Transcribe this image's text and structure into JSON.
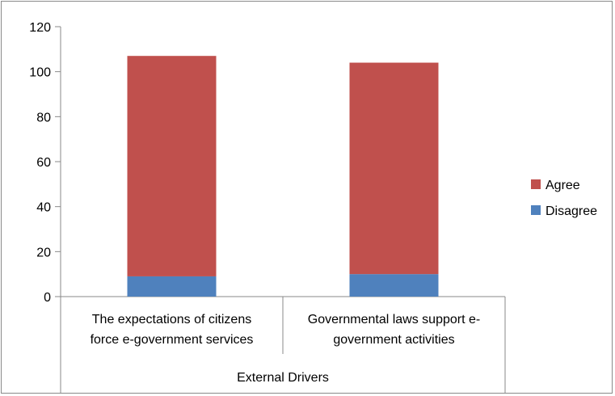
{
  "chart_data": {
    "type": "bar",
    "stacked": true,
    "categories": [
      [
        "The expectations of citizens",
        "force e-government  services"
      ],
      [
        "Governmental laws support e-",
        "government activities"
      ]
    ],
    "group_label": "External Drivers",
    "series": [
      {
        "name": "Disagree",
        "color": "#4F81BD",
        "values": [
          9,
          10
        ]
      },
      {
        "name": "Agree",
        "color": "#C0504D",
        "values": [
          98,
          94
        ]
      }
    ],
    "ylim": [
      0,
      120
    ],
    "yticks": [
      0,
      20,
      40,
      60,
      80,
      100,
      120
    ],
    "grid": false,
    "legend": {
      "position": "right",
      "order": [
        "Agree",
        "Disagree"
      ]
    }
  }
}
